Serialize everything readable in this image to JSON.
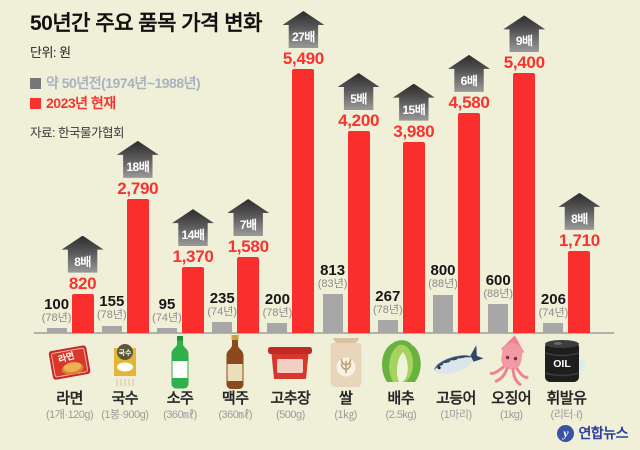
{
  "header": {
    "title": "50년간 주요 품목 가격 변화",
    "unit_label": "단위: 원",
    "source": "자료: 한국물가협회"
  },
  "legend": {
    "old_label": "약 50년전(1974년~1988년)",
    "new_label": "2023년 현재"
  },
  "watermark": {
    "logo_text": "연합뉴스"
  },
  "colors": {
    "background": "#f0f0d9",
    "bar_old": "#a7a7a7",
    "bar_new": "#fb2e2e",
    "accent_red": "#f8322e",
    "legend_old_text": "#a9b2c1",
    "yonhap_blue": "#2d3f9c"
  },
  "chart_data": {
    "type": "bar",
    "title": "50년간 주요 품목 가격 변화",
    "unit": "원",
    "ylim": [
      0,
      5490
    ],
    "grid": false,
    "series": [
      {
        "name": "약 50년전(1974년~1988년)",
        "color": "#a7a7a7"
      },
      {
        "name": "2023년 현재",
        "color": "#fb2e2e"
      }
    ],
    "items": [
      {
        "name": "라면",
        "spec": "(1개·120g)",
        "old_price": 100,
        "old_year_label": "(78년)",
        "price_2023": 820,
        "multiplier": "8배",
        "icon": "ramen-pack-icon",
        "icon_text": "라면"
      },
      {
        "name": "국수",
        "spec": "(1봉·900g)",
        "old_price": 155,
        "old_year_label": "(78년)",
        "price_2023": 2790,
        "multiplier": "18배",
        "icon": "noodle-pack-icon",
        "icon_text": "국수"
      },
      {
        "name": "소주",
        "spec": "(360㎖)",
        "old_price": 95,
        "old_year_label": "(74년)",
        "price_2023": 1370,
        "multiplier": "14배",
        "icon": "soju-bottle-icon",
        "icon_text": ""
      },
      {
        "name": "맥주",
        "spec": "(360㎖)",
        "old_price": 235,
        "old_year_label": "(74년)",
        "price_2023": 1580,
        "multiplier": "7배",
        "icon": "beer-bottle-icon",
        "icon_text": ""
      },
      {
        "name": "고추장",
        "spec": "(500g)",
        "old_price": 200,
        "old_year_label": "(78년)",
        "price_2023": 5490,
        "multiplier": "27배",
        "icon": "gochujang-tub-icon",
        "icon_text": ""
      },
      {
        "name": "쌀",
        "spec": "(1㎏)",
        "old_price": 813,
        "old_year_label": "(83년)",
        "price_2023": 4200,
        "multiplier": "5배",
        "icon": "rice-sack-icon",
        "icon_text": ""
      },
      {
        "name": "배추",
        "spec": "(2.5kg)",
        "old_price": 267,
        "old_year_label": "(78년)",
        "price_2023": 3980,
        "multiplier": "15배",
        "icon": "cabbage-icon",
        "icon_text": ""
      },
      {
        "name": "고등어",
        "spec": "(1마리)",
        "old_price": 800,
        "old_year_label": "(88년)",
        "price_2023": 4580,
        "multiplier": "6배",
        "icon": "mackerel-icon",
        "icon_text": ""
      },
      {
        "name": "오징어",
        "spec": "(1kg)",
        "old_price": 600,
        "old_year_label": "(88년)",
        "price_2023": 5400,
        "multiplier": "9배",
        "icon": "squid-icon",
        "icon_text": ""
      },
      {
        "name": "휘발유",
        "spec": "(리터·ℓ)",
        "old_price": 206,
        "old_year_label": "(74년)",
        "price_2023": 1710,
        "multiplier": "8배",
        "icon": "oil-drum-icon",
        "icon_text": "OIL"
      }
    ]
  }
}
